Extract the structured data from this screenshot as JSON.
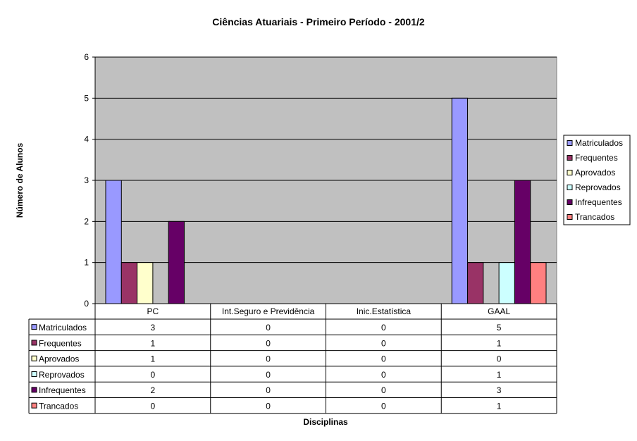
{
  "chart_data": {
    "type": "bar",
    "title": "Ciências Atuariais - Primeiro Período - 2001/2",
    "xlabel": "Disciplinas",
    "ylabel": "Número de Alunos",
    "ylim": [
      0,
      6
    ],
    "yticks": [
      "0",
      "1",
      "2",
      "3",
      "4",
      "5",
      "6"
    ],
    "grid": true,
    "legend_position": "right",
    "categories": [
      "PC",
      "Int.Seguro e Previdência",
      "Inic.Estatística",
      "GAAL"
    ],
    "series": [
      {
        "name": "Matriculados",
        "color": "#9999FF",
        "values": [
          3,
          0,
          0,
          5
        ]
      },
      {
        "name": "Frequentes",
        "color": "#993366",
        "values": [
          1,
          0,
          0,
          1
        ]
      },
      {
        "name": "Aprovados",
        "color": "#FFFFCC",
        "values": [
          1,
          0,
          0,
          0
        ]
      },
      {
        "name": "Reprovados",
        "color": "#CCFFFF",
        "values": [
          0,
          0,
          0,
          1
        ]
      },
      {
        "name": "Infrequentes",
        "color": "#660066",
        "values": [
          2,
          0,
          0,
          3
        ]
      },
      {
        "name": "Trancados",
        "color": "#FF8080",
        "values": [
          0,
          0,
          0,
          1
        ]
      }
    ],
    "plot_background": "#C0C0C0"
  }
}
